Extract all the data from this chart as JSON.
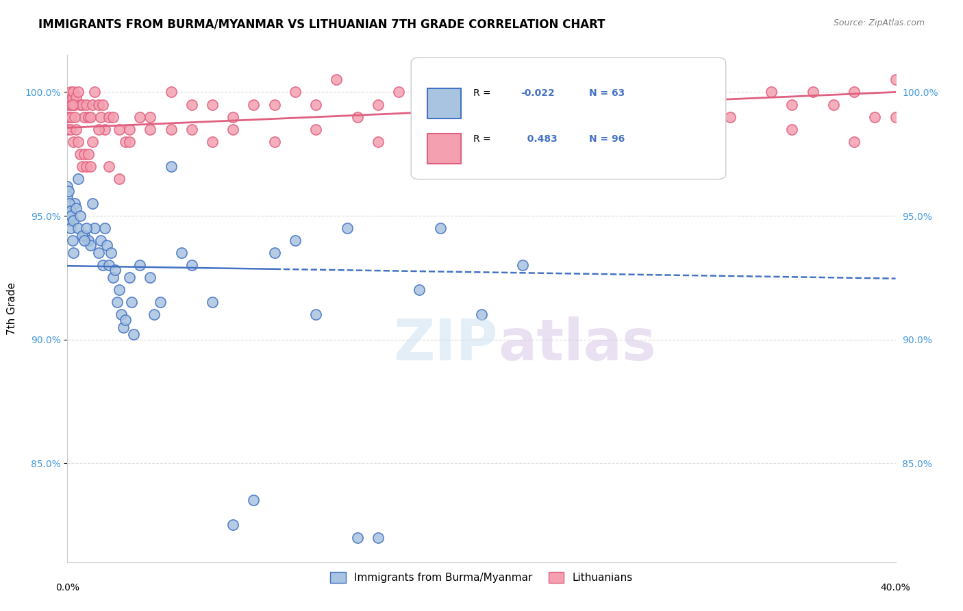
{
  "title": "IMMIGRANTS FROM BURMA/MYANMAR VS LITHUANIAN 7TH GRADE CORRELATION CHART",
  "source": "Source: ZipAtlas.com",
  "ylabel": "7th Grade",
  "xlim": [
    0.0,
    40.0
  ],
  "ylim": [
    81.0,
    101.5
  ],
  "blue_R": -0.022,
  "blue_N": 63,
  "pink_R": 0.483,
  "pink_N": 96,
  "blue_color": "#a8c4e0",
  "pink_color": "#f4a0b0",
  "blue_line_color": "#4472c4",
  "pink_line_color": "#e06080",
  "blue_x": [
    0.05,
    0.1,
    0.15,
    0.2,
    0.25,
    0.3,
    0.35,
    0.5,
    0.8,
    1.0,
    1.1,
    1.2,
    1.3,
    1.5,
    1.6,
    1.7,
    1.8,
    1.9,
    2.0,
    2.1,
    2.2,
    2.3,
    2.4,
    2.5,
    2.6,
    2.7,
    2.8,
    3.0,
    3.1,
    3.2,
    3.5,
    4.0,
    4.2,
    4.5,
    5.0,
    5.5,
    6.0,
    7.0,
    8.0,
    9.0,
    10.0,
    11.0,
    12.0,
    13.5,
    14.0,
    15.0,
    17.0,
    18.0,
    20.0,
    22.0,
    0.0,
    0.0,
    0.05,
    0.1,
    0.15,
    0.2,
    0.3,
    0.4,
    0.5,
    0.6,
    0.7,
    0.8,
    0.9
  ],
  "blue_y": [
    95.2,
    94.8,
    94.5,
    95.0,
    94.0,
    93.5,
    95.5,
    96.5,
    94.2,
    94.0,
    93.8,
    95.5,
    94.5,
    93.5,
    94.0,
    93.0,
    94.5,
    93.8,
    93.0,
    93.5,
    92.5,
    92.8,
    91.5,
    92.0,
    91.0,
    90.5,
    90.8,
    92.5,
    91.5,
    90.2,
    93.0,
    92.5,
    91.0,
    91.5,
    97.0,
    93.5,
    93.0,
    91.5,
    82.5,
    83.5,
    93.5,
    94.0,
    91.0,
    94.5,
    82.0,
    82.0,
    92.0,
    94.5,
    91.0,
    93.0,
    95.8,
    96.2,
    96.0,
    95.5,
    95.2,
    95.0,
    94.8,
    95.3,
    94.5,
    95.0,
    94.2,
    94.0,
    94.5
  ],
  "pink_x": [
    0.05,
    0.1,
    0.15,
    0.2,
    0.25,
    0.3,
    0.35,
    0.4,
    0.5,
    0.6,
    0.7,
    0.8,
    0.9,
    1.0,
    1.1,
    1.2,
    1.3,
    1.5,
    1.6,
    1.7,
    1.8,
    2.0,
    2.2,
    2.5,
    2.8,
    3.0,
    3.5,
    4.0,
    5.0,
    6.0,
    7.0,
    8.0,
    9.0,
    10.0,
    11.0,
    12.0,
    13.0,
    14.0,
    15.0,
    16.0,
    17.0,
    18.0,
    19.0,
    20.0,
    21.0,
    22.0,
    23.0,
    25.0,
    27.0,
    30.0,
    32.0,
    34.0,
    35.0,
    36.0,
    37.0,
    38.0,
    39.0,
    40.0,
    0.0,
    0.05,
    0.1,
    0.15,
    0.2,
    0.25,
    0.3,
    0.35,
    0.4,
    0.5,
    0.6,
    0.7,
    0.8,
    0.9,
    1.0,
    1.1,
    1.2,
    1.5,
    2.0,
    2.5,
    3.0,
    4.0,
    5.0,
    6.0,
    7.0,
    8.0,
    10.0,
    12.0,
    15.0,
    17.0,
    20.0,
    25.0,
    30.0,
    35.0,
    38.0,
    40.0,
    22.0,
    28.0
  ],
  "pink_y": [
    99.5,
    99.8,
    100.0,
    99.5,
    99.8,
    100.0,
    99.5,
    99.8,
    100.0,
    99.5,
    99.5,
    99.0,
    99.5,
    99.0,
    99.0,
    99.5,
    100.0,
    99.5,
    99.0,
    99.5,
    98.5,
    99.0,
    99.0,
    98.5,
    98.0,
    98.5,
    99.0,
    99.0,
    100.0,
    99.5,
    99.5,
    99.0,
    99.5,
    99.5,
    100.0,
    99.5,
    100.5,
    99.0,
    99.5,
    100.0,
    99.5,
    100.0,
    100.0,
    99.5,
    100.0,
    100.0,
    99.5,
    100.0,
    100.0,
    100.0,
    99.0,
    100.0,
    99.5,
    100.0,
    99.5,
    100.0,
    99.0,
    100.5,
    98.5,
    99.0,
    99.0,
    98.5,
    99.0,
    99.5,
    98.0,
    99.0,
    98.5,
    98.0,
    97.5,
    97.0,
    97.5,
    97.0,
    97.5,
    97.0,
    98.0,
    98.5,
    97.0,
    96.5,
    98.0,
    98.5,
    98.5,
    98.5,
    98.0,
    98.5,
    98.0,
    98.5,
    98.0,
    98.5,
    97.0,
    98.5,
    97.0,
    98.5,
    98.0,
    99.0,
    97.0,
    98.0
  ]
}
